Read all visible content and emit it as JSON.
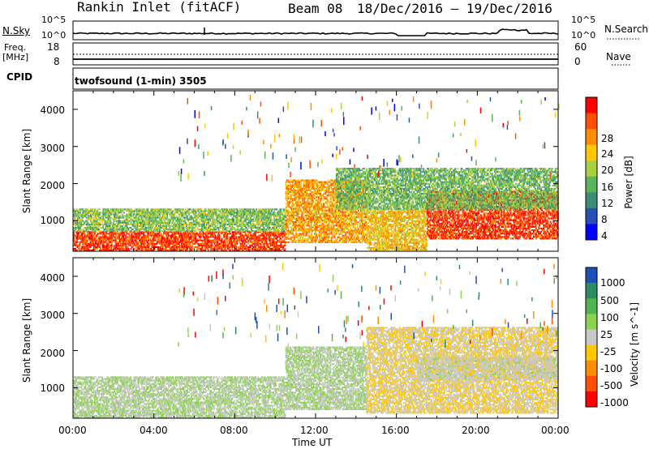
{
  "header": {
    "station": "Rankin Inlet (fitACF)",
    "beam": "Beam 08",
    "date_range": "18/Dec/2016 – 19/Dec/2016"
  },
  "nsky_panel": {
    "left_label": "N.Sky",
    "left_ticks": [
      "10^5",
      "10^0"
    ],
    "right_ticks": [
      "10^5",
      "10^0"
    ],
    "right_label": "N.Search"
  },
  "freq_panel": {
    "left_label_1": "Freq.",
    "left_label_2": "[MHz]",
    "left_ticks": [
      "18",
      "8"
    ],
    "right_ticks": [
      "60",
      "0"
    ],
    "right_label": "Nave"
  },
  "cpid_panel": {
    "label": "CPID",
    "program": "twofsound (1-min) 3505"
  },
  "power_panel": {
    "ylabel": "Slant Range [km]",
    "yticks": [
      "4000",
      "3000",
      "2000",
      "1000"
    ],
    "colorbar_label": "Power [dB]",
    "colorbar_ticks": [
      "28",
      "24",
      "20",
      "16",
      "12",
      "8",
      "4"
    ],
    "colors": [
      "#ff0000",
      "#ff5000",
      "#ff8c00",
      "#ffc800",
      "#a8d040",
      "#5ab45a",
      "#3c8c78",
      "#2850b4",
      "#0000ff"
    ]
  },
  "velocity_panel": {
    "ylabel": "Slant Range [km]",
    "yticks": [
      "4000",
      "3000",
      "2000",
      "1000"
    ],
    "colorbar_label": "Velocity [m s^-1]",
    "colorbar_ticks": [
      "1000",
      "500",
      "100",
      "25",
      "-25",
      "-100",
      "-500",
      "-1000"
    ],
    "colors": [
      "#1e50b4",
      "#2d8c64",
      "#50b450",
      "#8cd250",
      "#c8c8c8",
      "#ffc800",
      "#ff8c00",
      "#ff5000",
      "#ff0000"
    ]
  },
  "x_axis": {
    "label": "Time UT",
    "ticks": [
      "00:00",
      "04:00",
      "08:00",
      "12:00",
      "16:00",
      "20:00",
      "00:00"
    ]
  },
  "chart_data": [
    {
      "type": "heatmap",
      "name": "power",
      "x_range_hours": [
        0,
        24
      ],
      "y_range_km": [
        180,
        4500
      ],
      "colorbar_range_db": [
        0,
        32
      ],
      "echo_regions": [
        {
          "t_start": 0.0,
          "t_end": 3.5,
          "r_min": 180,
          "r_max": 700,
          "level": 28
        },
        {
          "t_start": 3.5,
          "t_end": 10.5,
          "r_min": 180,
          "r_max": 700,
          "level": 28
        },
        {
          "t_start": 0.0,
          "t_end": 10.5,
          "r_min": 700,
          "r_max": 1300,
          "level": 14
        },
        {
          "t_start": 10.5,
          "t_end": 14.5,
          "r_min": 400,
          "r_max": 2100,
          "level": 22
        },
        {
          "t_start": 14.5,
          "t_end": 17.5,
          "r_min": 200,
          "r_max": 1300,
          "level": 20
        },
        {
          "t_start": 17.5,
          "t_end": 24.0,
          "r_min": 500,
          "r_max": 1800,
          "level": 28
        },
        {
          "t_start": 13.0,
          "t_end": 24.0,
          "r_min": 1300,
          "r_max": 2400,
          "level": 13
        }
      ]
    },
    {
      "type": "heatmap",
      "name": "velocity",
      "x_range_hours": [
        0,
        24
      ],
      "y_range_km": [
        180,
        4500
      ],
      "colorbar_range_ms": [
        -1000,
        1000
      ],
      "echo_regions": [
        {
          "t_start": 0.0,
          "t_end": 10.5,
          "r_min": 180,
          "r_max": 1300,
          "level": 100
        },
        {
          "t_start": 10.5,
          "t_end": 14.5,
          "r_min": 400,
          "r_max": 2100,
          "level": 100
        },
        {
          "t_start": 14.5,
          "t_end": 24.0,
          "r_min": 300,
          "r_max": 2600,
          "level": -100
        },
        {
          "t_start": 17.0,
          "t_end": 24.0,
          "r_min": 1200,
          "r_max": 1800,
          "level": 0
        }
      ]
    }
  ]
}
